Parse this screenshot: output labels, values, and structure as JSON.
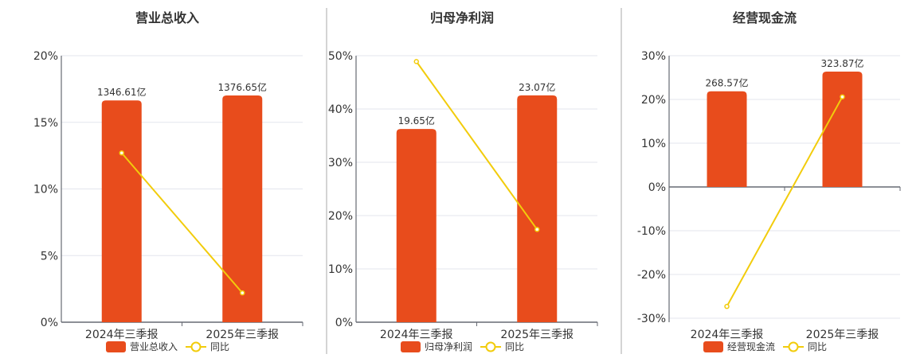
{
  "colors": {
    "bar": "#e84c1c",
    "line": "#f2cc0c",
    "grid": "#e3e6ee",
    "axis": "#666a73",
    "divider": "#aaaaaa"
  },
  "chart_data": [
    {
      "type": "bar+line",
      "title": "营业总收入",
      "categories": [
        "2024年三季报",
        "2025年三季报"
      ],
      "bar_series": {
        "name": "营业总收入",
        "values": [
          1346.61,
          1376.65
        ],
        "labels": [
          "1346.61亿",
          "1376.65亿"
        ],
        "axis_range": [
          0,
          1618
        ]
      },
      "line_series": {
        "name": "同比",
        "values": [
          12.7,
          2.2
        ]
      },
      "ylim": [
        0,
        20
      ],
      "yticks": [
        0,
        5,
        10,
        15,
        20
      ],
      "ytick_labels": [
        "0%",
        "5%",
        "10%",
        "15%",
        "20%"
      ],
      "grid": true,
      "legend": "bottom-center"
    },
    {
      "type": "bar+line",
      "title": "归母净利润",
      "categories": [
        "2024年三季报",
        "2025年三季报"
      ],
      "bar_series": {
        "name": "归母净利润",
        "values": [
          19.65,
          23.07
        ],
        "labels": [
          "19.65亿",
          "23.07亿"
        ],
        "axis_range": [
          0,
          27.1
        ]
      },
      "line_series": {
        "name": "同比",
        "values": [
          48.9,
          17.4
        ]
      },
      "ylim": [
        0,
        50
      ],
      "yticks": [
        0,
        10,
        20,
        30,
        40,
        50
      ],
      "ytick_labels": [
        "0%",
        "10%",
        "20%",
        "30%",
        "40%",
        "50%"
      ],
      "grid": true,
      "legend": "bottom-center"
    },
    {
      "type": "bar+line",
      "title": "经营现金流",
      "categories": [
        "2024年三季报",
        "2025年三季报"
      ],
      "bar_series": {
        "name": "经营现金流",
        "values": [
          268.57,
          323.87
        ],
        "labels": [
          "268.57亿",
          "323.87亿"
        ],
        "axis_range": [
          -368.5,
          368.5
        ]
      },
      "line_series": {
        "name": "同比",
        "values": [
          -27.3,
          20.6
        ]
      },
      "ylim": [
        -30,
        30
      ],
      "yticks": [
        -30,
        -20,
        -10,
        0,
        10,
        20,
        30
      ],
      "ytick_labels": [
        "-30%",
        "-20%",
        "-10%",
        "0%",
        "10%",
        "20%",
        "30%"
      ],
      "grid": true,
      "legend": "bottom-center"
    }
  ]
}
